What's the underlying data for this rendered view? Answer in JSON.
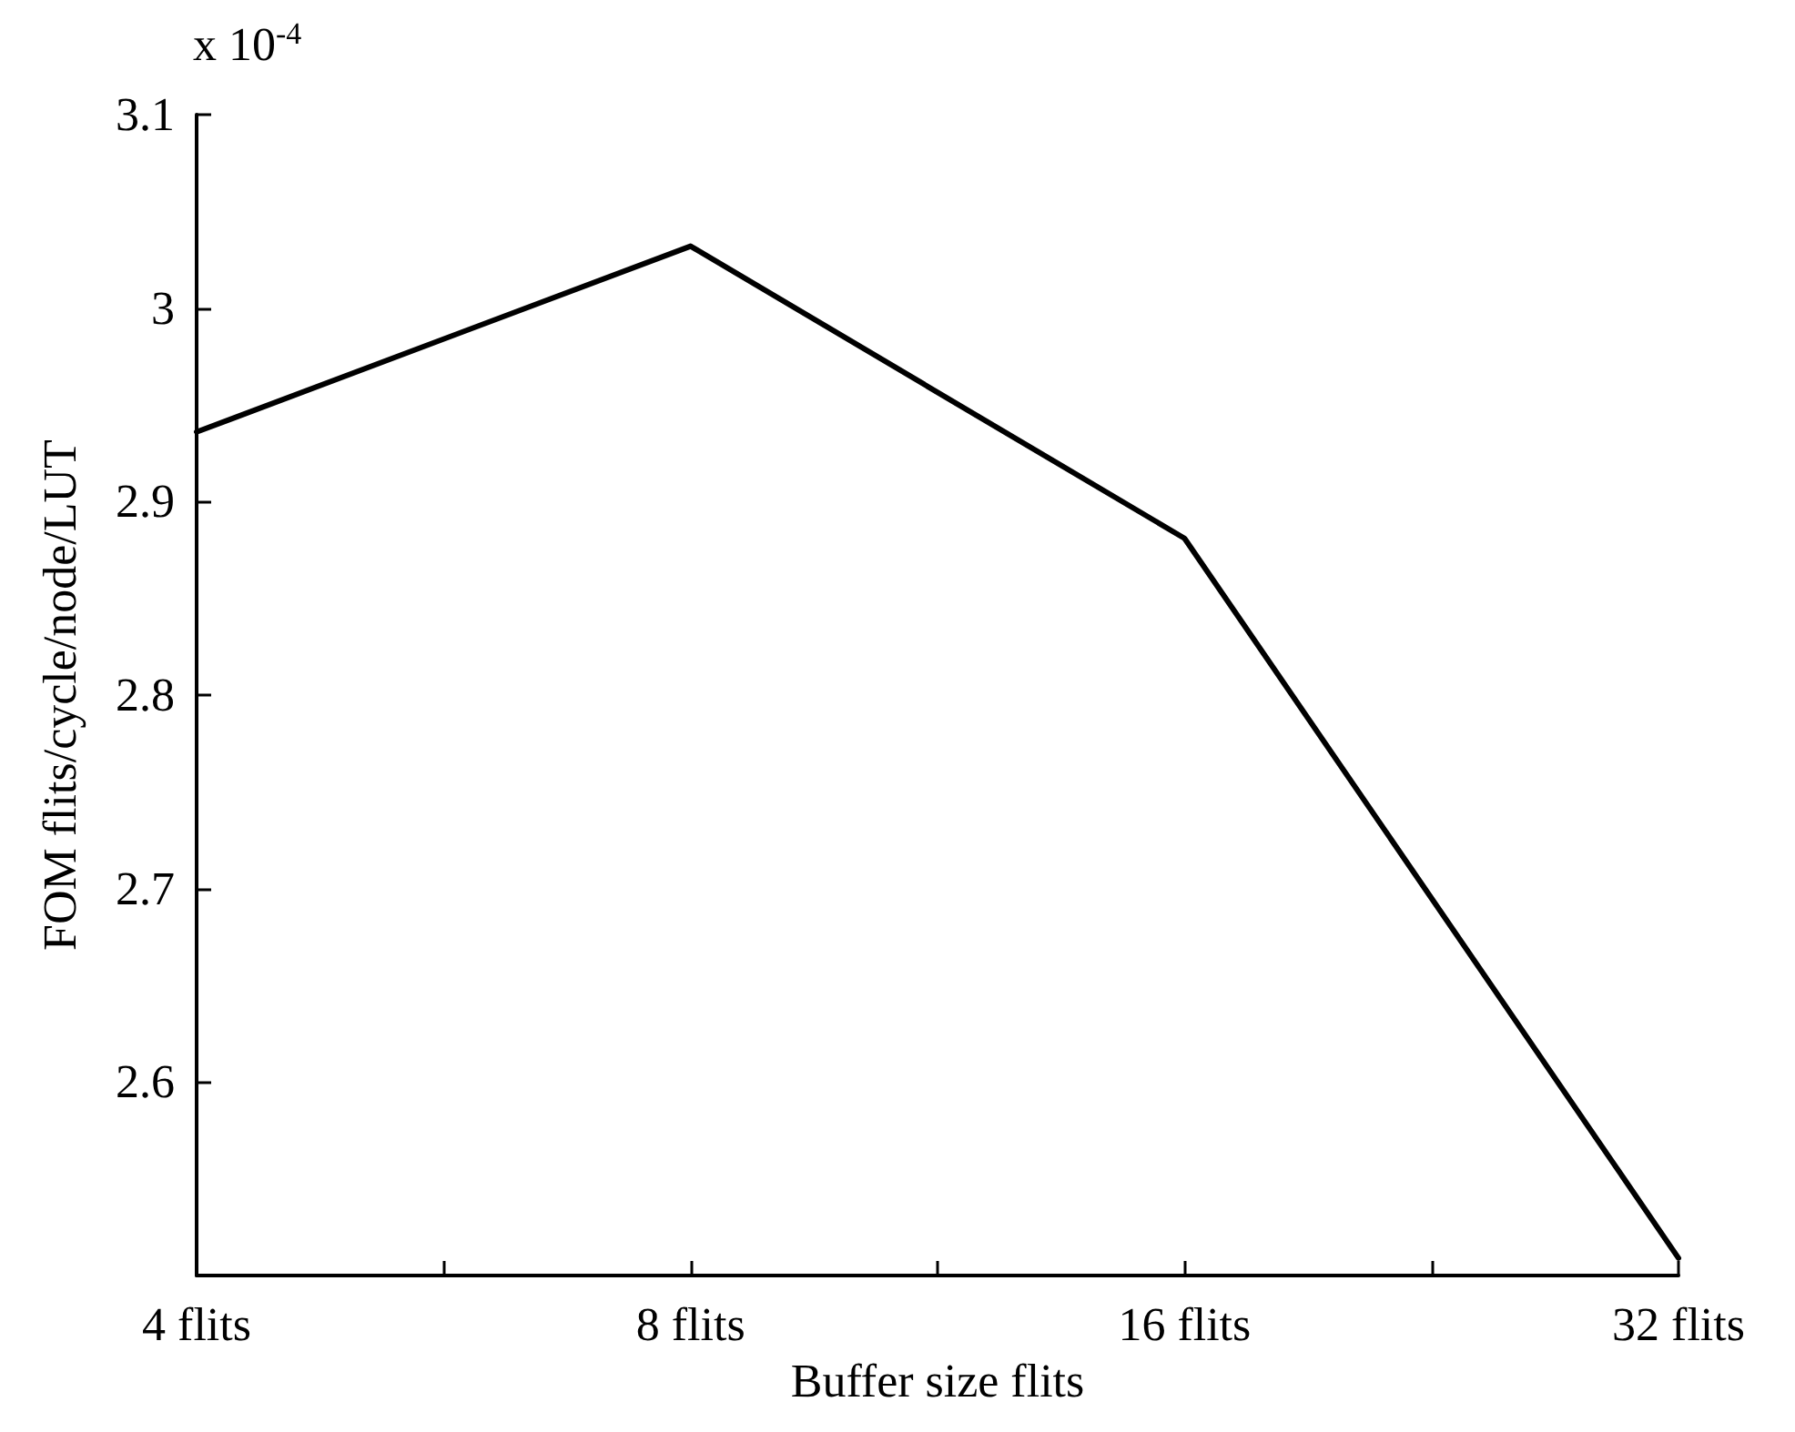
{
  "chart_data": {
    "type": "line",
    "xlabel": "Buffer size flits",
    "ylabel": "FOM flits/cycle/node/LUT",
    "annotations": [
      "x 10$^{-4}$"
    ],
    "categories": [
      "4 flits",
      "8 flits",
      "16 flits",
      "32 flits"
    ],
    "series": [
      {
        "color": "#000000",
        "values": [
          2.936,
          3.032,
          2.881,
          2.509
        ]
      }
    ],
    "ylim": [
      2.5,
      3.1
    ],
    "yticks": [
      2.6,
      2.7,
      2.8,
      2.9,
      3,
      3.1
    ],
    "grid": false,
    "marker": "none",
    "line_style": "solid"
  }
}
